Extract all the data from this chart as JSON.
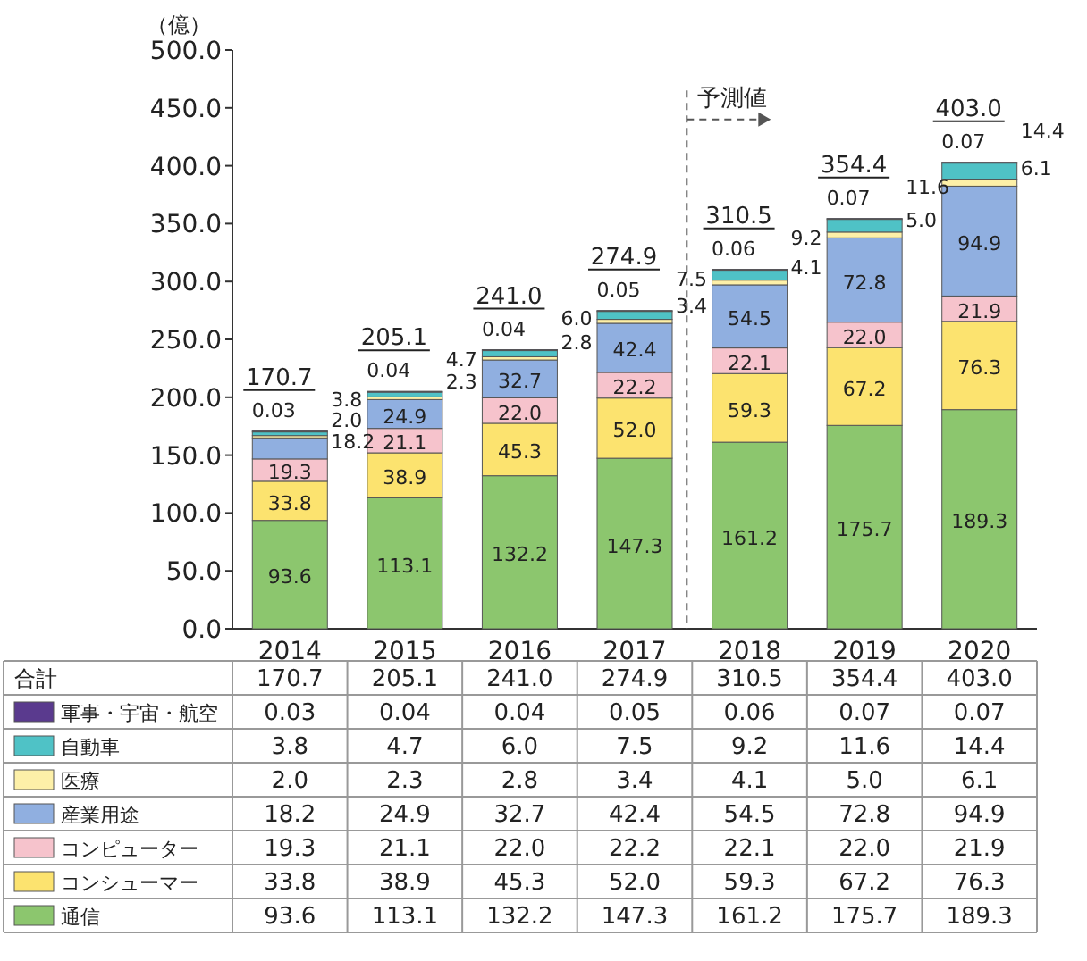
{
  "chart_data": {
    "type": "bar",
    "stacked": true,
    "legend": "bottom",
    "ylabel": "（億）",
    "categories": [
      "2014",
      "2015",
      "2016",
      "2017",
      "2018",
      "2019",
      "2020"
    ],
    "ylim": [
      0,
      500
    ],
    "yticks": [
      {
        "value": 0,
        "label": "0.0"
      },
      {
        "value": 50,
        "label": "50.0"
      },
      {
        "value": 100,
        "label": "100.0"
      },
      {
        "value": 150,
        "label": "150.0"
      },
      {
        "value": 200,
        "label": "200.0"
      },
      {
        "value": 250,
        "label": "250.0"
      },
      {
        "value": 300,
        "label": "300.0"
      },
      {
        "value": 350,
        "label": "350.0"
      },
      {
        "value": 400,
        "label": "400.0"
      },
      {
        "value": 450,
        "label": "450.0"
      },
      {
        "value": 500,
        "label": "500.0"
      }
    ],
    "series": [
      {
        "name": "通信",
        "color": "#8cc66e",
        "values": [
          93.6,
          113.1,
          132.2,
          147.3,
          161.2,
          175.7,
          189.3
        ],
        "value_labels": [
          "93.6",
          "113.1",
          "132.2",
          "147.3",
          "161.2",
          "175.7",
          "189.3"
        ]
      },
      {
        "name": "コンシューマー",
        "color": "#fce36f",
        "values": [
          33.8,
          38.9,
          45.3,
          52.0,
          59.3,
          67.2,
          76.3
        ],
        "value_labels": [
          "33.8",
          "38.9",
          "45.3",
          "52.0",
          "59.3",
          "67.2",
          "76.3"
        ]
      },
      {
        "name": "コンピューター",
        "color": "#f6c3cc",
        "values": [
          19.3,
          21.1,
          22.0,
          22.2,
          22.1,
          22.0,
          21.9
        ],
        "value_labels": [
          "19.3",
          "21.1",
          "22.0",
          "22.2",
          "22.1",
          "22.0",
          "21.9"
        ]
      },
      {
        "name": "産業用途",
        "color": "#90afe0",
        "values": [
          18.2,
          24.9,
          32.7,
          42.4,
          54.5,
          72.8,
          94.9
        ],
        "value_labels": [
          "18.2",
          "24.9",
          "32.7",
          "42.4",
          "54.5",
          "72.8",
          "94.9"
        ]
      },
      {
        "name": "医療",
        "color": "#fdf0a8",
        "values": [
          2.0,
          2.3,
          2.8,
          3.4,
          4.1,
          5.0,
          6.1
        ],
        "value_labels": [
          "2.0",
          "2.3",
          "2.8",
          "3.4",
          "4.1",
          "5.0",
          "6.1"
        ]
      },
      {
        "name": "自動車",
        "color": "#4fc2c6",
        "values": [
          3.8,
          4.7,
          6.0,
          7.5,
          9.2,
          11.6,
          14.4
        ],
        "value_labels": [
          "3.8",
          "4.7",
          "6.0",
          "7.5",
          "9.2",
          "11.6",
          "14.4"
        ]
      },
      {
        "name": "軍事・宇宙・航空",
        "color": "#5a3a8e",
        "values": [
          0.03,
          0.04,
          0.04,
          0.05,
          0.06,
          0.07,
          0.07
        ],
        "value_labels": [
          "0.03",
          "0.04",
          "0.04",
          "0.05",
          "0.06",
          "0.07",
          "0.07"
        ]
      }
    ],
    "totals": [
      "170.7",
      "205.1",
      "241.0",
      "274.9",
      "310.5",
      "354.4",
      "403.0"
    ],
    "annotations": [
      "合計",
      "予測値"
    ]
  }
}
